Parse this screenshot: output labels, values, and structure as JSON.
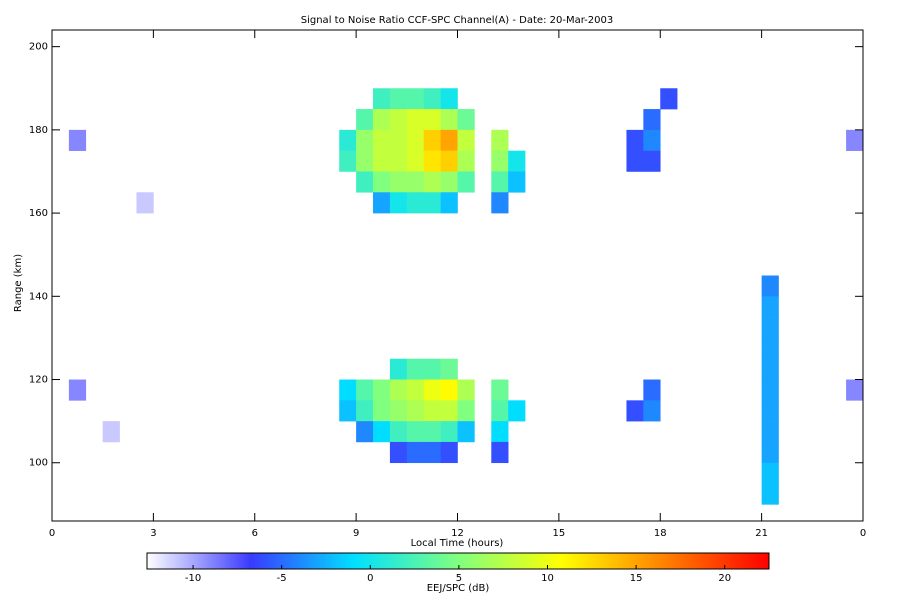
{
  "chart_data": {
    "type": "heatmap",
    "title": "Signal to Noise Ratio CCF-SPC Channel(A) - Date: 20-Mar-2003",
    "x_label": "Local Time (hours)",
    "y_label": "Range (km)",
    "colorbar_label": "EEJ/SPC (dB)",
    "xlim": [
      0,
      24
    ],
    "xticks": [
      0,
      3,
      6,
      9,
      12,
      15,
      18,
      21,
      {
        "value": 24,
        "label": "0"
      }
    ],
    "ylim": [
      86,
      204
    ],
    "yticks": [
      100,
      120,
      140,
      160,
      180,
      200
    ],
    "zlim": [
      -12.6,
      22.5
    ],
    "zticks": [
      -10,
      -5,
      0,
      5,
      10,
      15,
      20
    ],
    "colorscale": [
      "#ffffff",
      "#3a3aff",
      "#00e0ff",
      "#80ff80",
      "#ffff00",
      "#ff8000",
      "#ff0000"
    ],
    "x": [
      9.75,
      10.25,
      10.75,
      11.25,
      11.75,
      9.25,
      9.75,
      10.25,
      10.75,
      11.25,
      11.75,
      12.25,
      8.75,
      9.25,
      9.75,
      10.25,
      10.75,
      11.25,
      11.75,
      12.25,
      13.25,
      8.75,
      9.25,
      9.75,
      10.25,
      10.75,
      11.25,
      11.75,
      12.25,
      13.25,
      13.75,
      9.25,
      9.75,
      10.25,
      10.75,
      11.25,
      11.75,
      12.25,
      13.25,
      13.75,
      9.75,
      10.25,
      10.75,
      11.25,
      11.75,
      13.25,
      10.25,
      10.75,
      11.25,
      11.75,
      8.75,
      9.25,
      9.75,
      10.25,
      10.75,
      11.25,
      11.75,
      12.25,
      13.25,
      8.75,
      9.25,
      9.75,
      10.25,
      10.75,
      11.25,
      11.75,
      12.25,
      13.25,
      13.75,
      9.25,
      9.75,
      10.25,
      10.75,
      11.25,
      11.75,
      12.25,
      13.25,
      10.25,
      10.75,
      11.25,
      11.75,
      13.25,
      18.25,
      17.75,
      17.25,
      17.75,
      17.25,
      17.75,
      17.75,
      17.25,
      17.75,
      21.25,
      21.25,
      21.25,
      21.25,
      21.25,
      21.25,
      21.25,
      21.25,
      21.25,
      21.25,
      21.25,
      0.75,
      0.75,
      23.75,
      23.75,
      2.75,
      1.75
    ],
    "y": [
      187.5,
      187.5,
      187.5,
      187.5,
      187.5,
      182.5,
      182.5,
      182.5,
      182.5,
      182.5,
      182.5,
      182.5,
      177.5,
      177.5,
      177.5,
      177.5,
      177.5,
      177.5,
      177.5,
      177.5,
      177.5,
      172.5,
      172.5,
      172.5,
      172.5,
      172.5,
      172.5,
      172.5,
      172.5,
      172.5,
      172.5,
      167.5,
      167.5,
      167.5,
      167.5,
      167.5,
      167.5,
      167.5,
      167.5,
      167.5,
      162.5,
      162.5,
      162.5,
      162.5,
      162.5,
      162.5,
      122.5,
      122.5,
      122.5,
      122.5,
      117.5,
      117.5,
      117.5,
      117.5,
      117.5,
      117.5,
      117.5,
      117.5,
      117.5,
      112.5,
      112.5,
      112.5,
      112.5,
      112.5,
      112.5,
      112.5,
      112.5,
      112.5,
      112.5,
      107.5,
      107.5,
      107.5,
      107.5,
      107.5,
      107.5,
      107.5,
      107.5,
      102.5,
      102.5,
      102.5,
      102.5,
      102.5,
      187.5,
      182.5,
      177.5,
      177.5,
      172.5,
      172.5,
      117.5,
      112.5,
      112.5,
      142.5,
      137.5,
      132.5,
      127.5,
      122.5,
      117.5,
      112.5,
      107.5,
      102.5,
      97.5,
      92.5,
      177.5,
      117.5,
      177.5,
      117.5,
      162.5,
      107.5
    ],
    "z": [
      2,
      3,
      3,
      2,
      0,
      3,
      7,
      8,
      9,
      9,
      7,
      4,
      1,
      6,
      8,
      8,
      9,
      13,
      15,
      8,
      7,
      2,
      6,
      8,
      8,
      9,
      12,
      13,
      7,
      6,
      0,
      2,
      5,
      6,
      6,
      7,
      6,
      3,
      3,
      -2,
      -3,
      0,
      1,
      1,
      -2,
      -4,
      1,
      3,
      3,
      4,
      -1,
      3,
      5,
      7,
      8,
      10,
      11,
      7,
      4,
      -2,
      2,
      5,
      6,
      7,
      8,
      8,
      5,
      3,
      -1,
      -4,
      -1,
      2,
      3,
      3,
      2,
      -2,
      -1,
      -6,
      -5,
      -5,
      -6,
      -6,
      -6,
      -5,
      -6,
      -4,
      -6,
      -6,
      -5,
      -6,
      -4,
      -4,
      -3,
      -3,
      -3,
      -3,
      -3,
      -3,
      -3,
      -3,
      -2,
      -2,
      -9,
      -9,
      -9,
      -9,
      -11,
      -11
    ]
  }
}
